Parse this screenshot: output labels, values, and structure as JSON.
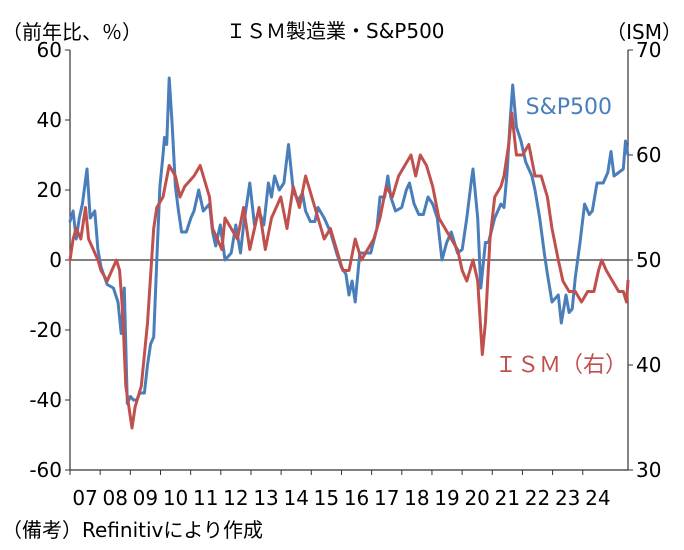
{
  "chart_data": {
    "type": "line",
    "title": "ＩＳＭ製造業・S&P500",
    "left_unit_label": "（前年比、％）",
    "right_unit_label": "（ISM）",
    "source": "（備考）Refinitivにより作成",
    "x_tick_labels": [
      "07",
      "08",
      "09",
      "10",
      "11",
      "12",
      "13",
      "14",
      "15",
      "16",
      "17",
      "18",
      "19",
      "20",
      "21",
      "22",
      "23",
      "24"
    ],
    "x_range": [
      2007.0,
      2025.0
    ],
    "y_left": {
      "range": [
        -60,
        60
      ],
      "ticks": [
        -60,
        -40,
        -20,
        0,
        20,
        40,
        60
      ]
    },
    "y_right": {
      "range": [
        30,
        70
      ],
      "ticks": [
        30,
        40,
        50,
        60,
        70
      ]
    },
    "grid": false,
    "zero_line": true,
    "series": [
      {
        "name": "S&P500",
        "axis": "left",
        "color": "#4a7ebb",
        "label_position": "upper-right",
        "points": [
          [
            2007.0,
            11
          ],
          [
            2007.1,
            14
          ],
          [
            2007.2,
            6
          ],
          [
            2007.3,
            12
          ],
          [
            2007.4,
            16
          ],
          [
            2007.55,
            26
          ],
          [
            2007.65,
            12
          ],
          [
            2007.8,
            14
          ],
          [
            2007.9,
            3
          ],
          [
            2008.0,
            -2
          ],
          [
            2008.2,
            -7
          ],
          [
            2008.4,
            -8
          ],
          [
            2008.55,
            -12
          ],
          [
            2008.65,
            -21
          ],
          [
            2008.75,
            -8
          ],
          [
            2008.85,
            -41
          ],
          [
            2008.95,
            -39
          ],
          [
            2009.05,
            -40
          ],
          [
            2009.15,
            -40
          ],
          [
            2009.25,
            -38
          ],
          [
            2009.4,
            -38
          ],
          [
            2009.5,
            -30
          ],
          [
            2009.6,
            -24
          ],
          [
            2009.7,
            -22
          ],
          [
            2009.8,
            0
          ],
          [
            2009.9,
            21
          ],
          [
            2010.0,
            30
          ],
          [
            2010.05,
            35
          ],
          [
            2010.12,
            33
          ],
          [
            2010.2,
            52
          ],
          [
            2010.3,
            38
          ],
          [
            2010.4,
            21
          ],
          [
            2010.5,
            14
          ],
          [
            2010.6,
            8
          ],
          [
            2010.75,
            8
          ],
          [
            2010.9,
            12
          ],
          [
            2011.0,
            14
          ],
          [
            2011.15,
            20
          ],
          [
            2011.3,
            14
          ],
          [
            2011.5,
            16
          ],
          [
            2011.6,
            8
          ],
          [
            2011.7,
            4
          ],
          [
            2011.85,
            10
          ],
          [
            2012.0,
            0
          ],
          [
            2012.2,
            2
          ],
          [
            2012.35,
            10
          ],
          [
            2012.5,
            2
          ],
          [
            2012.6,
            10
          ],
          [
            2012.8,
            22
          ],
          [
            2012.95,
            10
          ],
          [
            2013.1,
            14
          ],
          [
            2013.25,
            10
          ],
          [
            2013.4,
            22
          ],
          [
            2013.5,
            18
          ],
          [
            2013.6,
            24
          ],
          [
            2013.75,
            20
          ],
          [
            2013.9,
            22
          ],
          [
            2014.05,
            33
          ],
          [
            2014.2,
            20
          ],
          [
            2014.35,
            17
          ],
          [
            2014.5,
            19
          ],
          [
            2014.6,
            14
          ],
          [
            2014.75,
            11
          ],
          [
            2014.9,
            11
          ],
          [
            2015.0,
            15
          ],
          [
            2015.2,
            12
          ],
          [
            2015.4,
            8
          ],
          [
            2015.6,
            2
          ],
          [
            2015.75,
            -2
          ],
          [
            2015.9,
            -4
          ],
          [
            2016.0,
            -10
          ],
          [
            2016.1,
            -6
          ],
          [
            2016.2,
            -12
          ],
          [
            2016.35,
            2
          ],
          [
            2016.5,
            2
          ],
          [
            2016.7,
            2
          ],
          [
            2016.9,
            9
          ],
          [
            2017.0,
            18
          ],
          [
            2017.15,
            18
          ],
          [
            2017.25,
            24
          ],
          [
            2017.35,
            18
          ],
          [
            2017.5,
            14
          ],
          [
            2017.7,
            15
          ],
          [
            2017.85,
            20
          ],
          [
            2017.95,
            22
          ],
          [
            2018.1,
            16
          ],
          [
            2018.25,
            13
          ],
          [
            2018.4,
            13
          ],
          [
            2018.55,
            18
          ],
          [
            2018.7,
            16
          ],
          [
            2018.85,
            12
          ],
          [
            2019.0,
            0
          ],
          [
            2019.15,
            5
          ],
          [
            2019.3,
            8
          ],
          [
            2019.5,
            2
          ],
          [
            2019.65,
            3
          ],
          [
            2019.8,
            12
          ],
          [
            2019.95,
            23
          ],
          [
            2020.0,
            26
          ],
          [
            2020.15,
            12
          ],
          [
            2020.25,
            -8
          ],
          [
            2020.4,
            5
          ],
          [
            2020.5,
            5
          ],
          [
            2020.7,
            12
          ],
          [
            2020.9,
            16
          ],
          [
            2021.0,
            15
          ],
          [
            2021.1,
            25
          ],
          [
            2021.2,
            40
          ],
          [
            2021.28,
            50
          ],
          [
            2021.4,
            38
          ],
          [
            2021.55,
            34
          ],
          [
            2021.7,
            28
          ],
          [
            2021.9,
            24
          ],
          [
            2022.0,
            20
          ],
          [
            2022.15,
            12
          ],
          [
            2022.3,
            2
          ],
          [
            2022.4,
            -4
          ],
          [
            2022.55,
            -12
          ],
          [
            2022.75,
            -10
          ],
          [
            2022.85,
            -18
          ],
          [
            2023.0,
            -10
          ],
          [
            2023.1,
            -15
          ],
          [
            2023.2,
            -14
          ],
          [
            2023.3,
            -5
          ],
          [
            2023.45,
            5
          ],
          [
            2023.6,
            16
          ],
          [
            2023.75,
            13
          ],
          [
            2023.85,
            14
          ],
          [
            2024.0,
            22
          ],
          [
            2024.2,
            22
          ],
          [
            2024.35,
            25
          ],
          [
            2024.45,
            31
          ],
          [
            2024.55,
            24
          ],
          [
            2024.7,
            25
          ],
          [
            2024.85,
            26
          ],
          [
            2024.92,
            34
          ],
          [
            2025.0,
            30
          ]
        ]
      },
      {
        "name": "ＩＳＭ（右）",
        "axis": "right",
        "color": "#c0504d",
        "label_position": "lower-right",
        "points": [
          [
            2007.0,
            50
          ],
          [
            2007.1,
            52
          ],
          [
            2007.2,
            53
          ],
          [
            2007.35,
            52
          ],
          [
            2007.5,
            55
          ],
          [
            2007.6,
            52
          ],
          [
            2007.75,
            51
          ],
          [
            2007.9,
            50
          ],
          [
            2008.0,
            49
          ],
          [
            2008.2,
            48
          ],
          [
            2008.35,
            49
          ],
          [
            2008.5,
            50
          ],
          [
            2008.6,
            49
          ],
          [
            2008.7,
            45
          ],
          [
            2008.8,
            38
          ],
          [
            2008.9,
            36
          ],
          [
            2009.0,
            34
          ],
          [
            2009.1,
            36
          ],
          [
            2009.3,
            38
          ],
          [
            2009.5,
            44
          ],
          [
            2009.7,
            53
          ],
          [
            2009.8,
            55
          ],
          [
            2010.0,
            56
          ],
          [
            2010.2,
            59
          ],
          [
            2010.4,
            58
          ],
          [
            2010.55,
            56
          ],
          [
            2010.7,
            57
          ],
          [
            2011.0,
            58
          ],
          [
            2011.2,
            59
          ],
          [
            2011.5,
            56
          ],
          [
            2011.6,
            53
          ],
          [
            2011.75,
            52
          ],
          [
            2011.9,
            51
          ],
          [
            2012.0,
            54
          ],
          [
            2012.2,
            53
          ],
          [
            2012.4,
            52
          ],
          [
            2012.6,
            55
          ],
          [
            2012.8,
            51
          ],
          [
            2012.95,
            53
          ],
          [
            2013.1,
            55
          ],
          [
            2013.3,
            51
          ],
          [
            2013.5,
            54
          ],
          [
            2013.65,
            55
          ],
          [
            2013.8,
            56
          ],
          [
            2014.0,
            53
          ],
          [
            2014.2,
            57
          ],
          [
            2014.4,
            55
          ],
          [
            2014.6,
            58
          ],
          [
            2014.8,
            56
          ],
          [
            2015.0,
            54
          ],
          [
            2015.2,
            52
          ],
          [
            2015.4,
            53
          ],
          [
            2015.6,
            51
          ],
          [
            2015.8,
            49
          ],
          [
            2016.0,
            49
          ],
          [
            2016.2,
            52
          ],
          [
            2016.4,
            50
          ],
          [
            2016.6,
            51
          ],
          [
            2016.8,
            52
          ],
          [
            2017.0,
            54
          ],
          [
            2017.2,
            57
          ],
          [
            2017.4,
            56
          ],
          [
            2017.6,
            58
          ],
          [
            2017.8,
            59
          ],
          [
            2018.0,
            60
          ],
          [
            2018.15,
            58
          ],
          [
            2018.3,
            60
          ],
          [
            2018.5,
            59
          ],
          [
            2018.7,
            57
          ],
          [
            2018.9,
            54
          ],
          [
            2019.1,
            53
          ],
          [
            2019.3,
            52
          ],
          [
            2019.5,
            51
          ],
          [
            2019.65,
            49
          ],
          [
            2019.8,
            48
          ],
          [
            2020.0,
            50
          ],
          [
            2020.15,
            48
          ],
          [
            2020.3,
            41
          ],
          [
            2020.4,
            44
          ],
          [
            2020.55,
            52
          ],
          [
            2020.7,
            56
          ],
          [
            2020.9,
            57
          ],
          [
            2021.0,
            58
          ],
          [
            2021.15,
            61
          ],
          [
            2021.25,
            64
          ],
          [
            2021.4,
            60
          ],
          [
            2021.6,
            60
          ],
          [
            2021.8,
            61
          ],
          [
            2022.0,
            58
          ],
          [
            2022.2,
            58
          ],
          [
            2022.4,
            56
          ],
          [
            2022.55,
            53
          ],
          [
            2022.75,
            50
          ],
          [
            2022.9,
            48
          ],
          [
            2023.1,
            47
          ],
          [
            2023.3,
            47
          ],
          [
            2023.5,
            46
          ],
          [
            2023.7,
            47
          ],
          [
            2023.9,
            47
          ],
          [
            2024.05,
            49
          ],
          [
            2024.15,
            50
          ],
          [
            2024.3,
            49
          ],
          [
            2024.5,
            48
          ],
          [
            2024.7,
            47
          ],
          [
            2024.85,
            47
          ],
          [
            2024.95,
            46
          ],
          [
            2025.0,
            48
          ]
        ]
      }
    ]
  }
}
